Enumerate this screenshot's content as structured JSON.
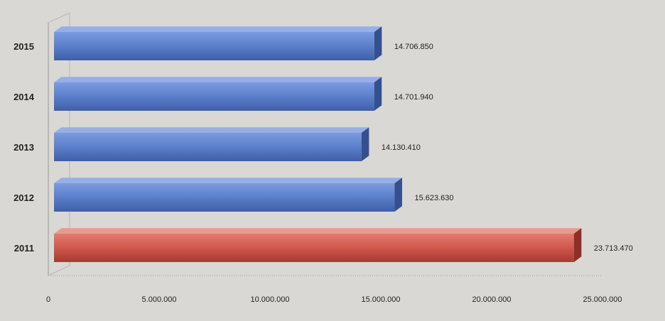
{
  "chart_data": {
    "type": "bar",
    "orientation": "horizontal",
    "style": "3d",
    "categories": [
      "2015",
      "2014",
      "2013",
      "2012",
      "2011"
    ],
    "values": [
      14706850,
      14701940,
      14130410,
      15623630,
      23713470
    ],
    "data_labels": [
      "14.706.850",
      "14.701.940",
      "14.130.410",
      "15.623.630",
      "23.713.470"
    ],
    "x_ticks": [
      0,
      5000000,
      10000000,
      15000000,
      20000000,
      25000000
    ],
    "x_tick_labels": [
      "0",
      "5.000.000",
      "10.000.000",
      "15.000.000",
      "20.000.000",
      "25.000.000"
    ],
    "xlim": [
      0,
      25000000
    ],
    "title": "",
    "xlabel": "",
    "ylabel": "",
    "grid": false,
    "legend": "none",
    "colors": {
      "bar": "#5b7fcb",
      "highlight_bar": "#d0574c",
      "background": "#d9d8d4",
      "text": "#222222"
    },
    "highlight_category": "2011"
  }
}
